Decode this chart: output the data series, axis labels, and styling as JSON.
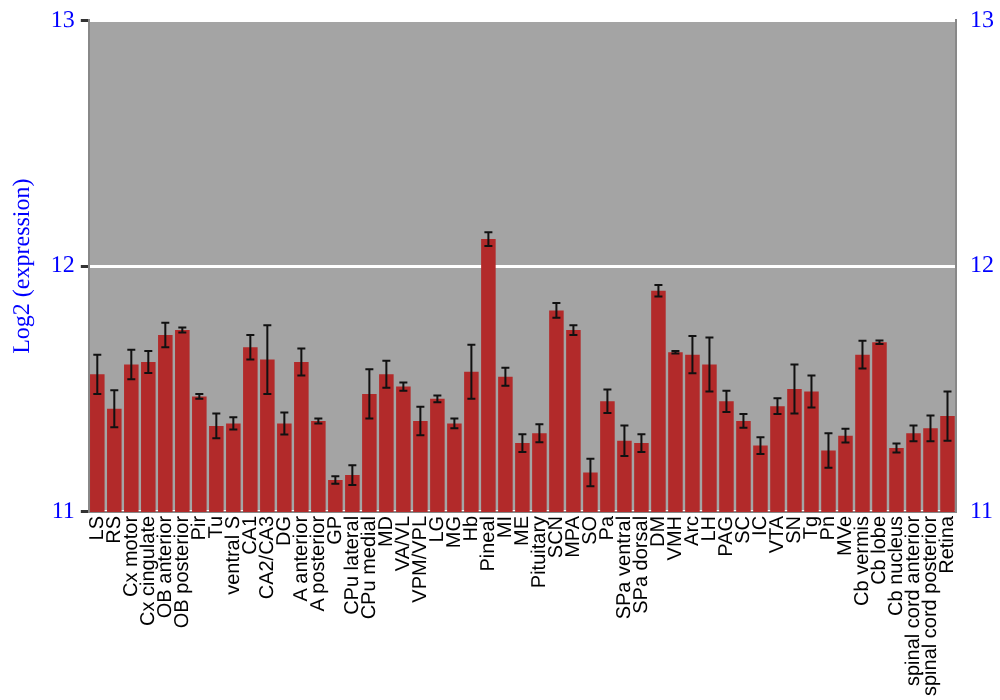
{
  "chart_data": {
    "type": "bar",
    "ylabel": "Log2 (expression)",
    "categories": [
      "LS",
      "RS",
      "Cx motor",
      "Cx cingulate",
      "OB anterior",
      "OB posterior",
      "Pir",
      "Tu",
      "ventral S",
      "CA1",
      "CA2/CA3",
      "DG",
      "A anterior",
      "A posterior",
      "GP",
      "CPu lateral",
      "CPu medial",
      "MD",
      "VA/VL",
      "VPM/VPL",
      "LG",
      "MG",
      "Hb",
      "Pineal",
      "MI",
      "ME",
      "Pituitary",
      "SCN",
      "MPA",
      "SO",
      "Pa",
      "SPa ventral",
      "SPa dorsal",
      "DM",
      "VMH",
      "Arc",
      "LH",
      "PAG",
      "SC",
      "IC",
      "VTA",
      "SN",
      "Tg",
      "Pn",
      "MVe",
      "Cb vermis",
      "Cb lobe",
      "Cb nucleus",
      "spinal cord anterior",
      "spinal cord posterior",
      "Retina"
    ],
    "series": [
      {
        "color": "#b22a2a",
        "values": [
          11.56,
          11.42,
          11.6,
          11.61,
          11.72,
          11.74,
          11.47,
          11.35,
          11.36,
          11.67,
          11.62,
          11.36,
          11.61,
          11.37,
          11.13,
          11.15,
          11.48,
          11.56,
          11.51,
          11.37,
          11.46,
          11.36,
          11.57,
          12.11,
          11.55,
          11.28,
          11.32,
          11.82,
          11.74,
          11.16,
          11.45,
          11.29,
          11.28,
          11.9,
          11.65,
          11.64,
          11.6,
          11.45,
          11.37,
          11.27,
          11.43,
          11.5,
          11.49,
          11.25,
          11.31,
          11.64,
          11.69,
          11.26,
          11.32,
          11.34,
          11.39
        ],
        "errors": [
          0.08,
          0.075,
          0.06,
          0.045,
          0.05,
          0.01,
          0.01,
          0.05,
          0.025,
          0.05,
          0.14,
          0.045,
          0.055,
          0.01,
          0.015,
          0.04,
          0.1,
          0.055,
          0.017,
          0.058,
          0.014,
          0.02,
          0.11,
          0.028,
          0.037,
          0.036,
          0.037,
          0.03,
          0.02,
          0.056,
          0.048,
          0.062,
          0.036,
          0.023,
          0.005,
          0.076,
          0.11,
          0.043,
          0.028,
          0.034,
          0.032,
          0.1,
          0.065,
          0.07,
          0.028,
          0.056,
          0.007,
          0.018,
          0.032,
          0.052,
          0.1
        ]
      }
    ],
    "ylim": [
      11,
      13
    ],
    "yticks": [
      11,
      12,
      13
    ],
    "y2lim": [
      11,
      13
    ],
    "y2ticks": [
      11,
      12,
      13
    ],
    "grid": "y",
    "legend": false
  }
}
